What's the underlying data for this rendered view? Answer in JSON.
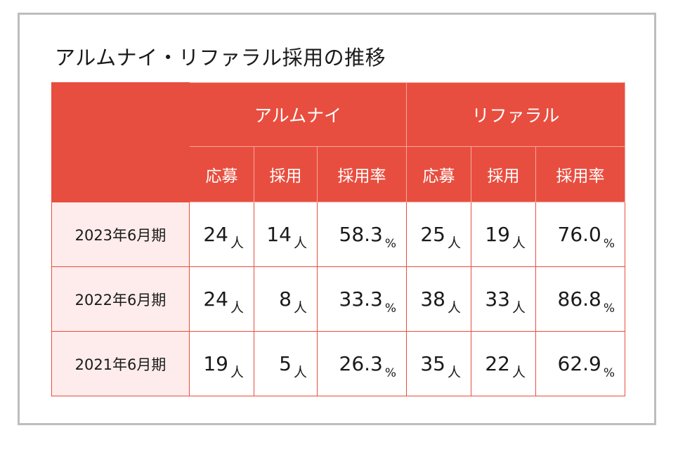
{
  "chart_data": {
    "type": "table",
    "title": "アルムナイ・リファラル採用の推移",
    "groups": [
      "アルムナイ",
      "リファラル"
    ],
    "columns": [
      "応募",
      "採用",
      "採用率"
    ],
    "units": {
      "count": "人",
      "rate": "%"
    },
    "rows": [
      {
        "label": "2023年6月期",
        "alumni": {
          "applications": "24",
          "hires": "14",
          "rate": "58.3"
        },
        "referral": {
          "applications": "25",
          "hires": "19",
          "rate": "76.0"
        }
      },
      {
        "label": "2022年6月期",
        "alumni": {
          "applications": "24",
          "hires": "8",
          "rate": "33.3"
        },
        "referral": {
          "applications": "38",
          "hires": "33",
          "rate": "86.8"
        }
      },
      {
        "label": "2021年6月期",
        "alumni": {
          "applications": "19",
          "hires": "5",
          "rate": "26.3"
        },
        "referral": {
          "applications": "35",
          "hires": "22",
          "rate": "62.9"
        }
      }
    ]
  },
  "colors": {
    "header": "#e84e3f",
    "row_label_bg": "#fdeceb",
    "border": "#e84e3f",
    "frame": "#bdbdbd"
  }
}
